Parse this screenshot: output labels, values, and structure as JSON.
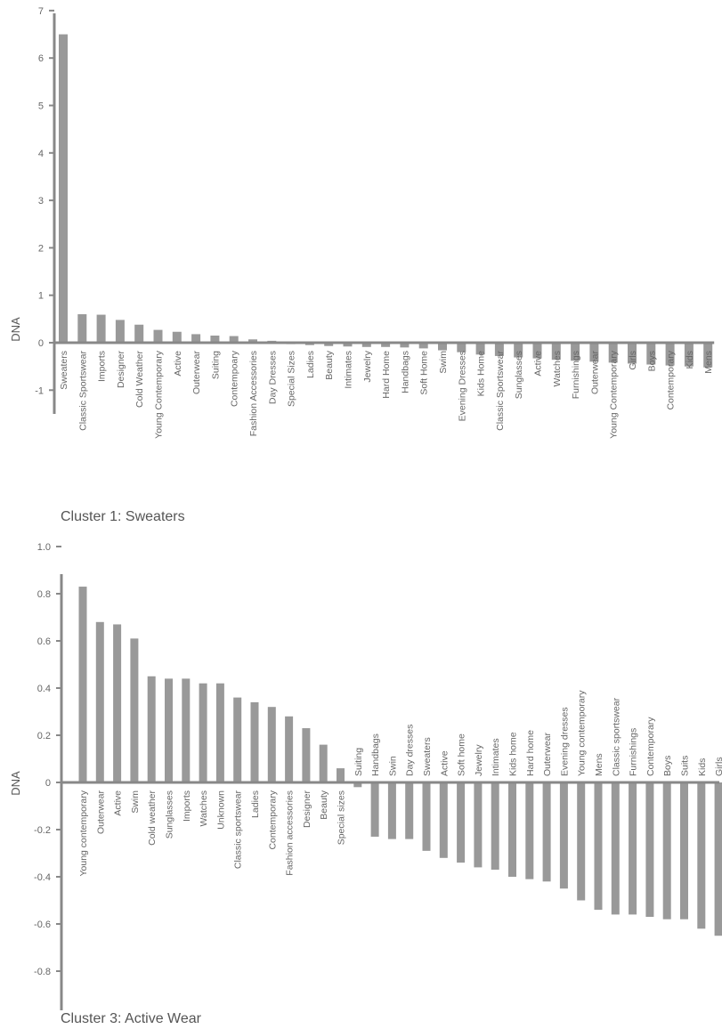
{
  "chart_data": [
    {
      "type": "bar",
      "title": "Cluster 1: Sweaters",
      "ylabel": "DNA",
      "ylim": [
        -1.5,
        7
      ],
      "yticks": [
        7,
        6,
        5,
        4,
        3,
        2,
        1,
        0,
        -1
      ],
      "grid": false,
      "categories": [
        "Sweaters",
        "Classic Sportswear",
        "Imports",
        "Designer",
        "Cold Weather",
        "Young Contemporary",
        "Active",
        "Outerwear",
        "Suiting",
        "Contempoary",
        "Fashion Accessories",
        "Day Dresses",
        "Special Sizes",
        "Ladies",
        "Beauty",
        "Intimates",
        "Jewelry",
        "Hard Home",
        "Handbags",
        "Soft Home",
        "Swim",
        "Evening Dresses",
        "Kids Home",
        "Classic Sportswear",
        "Sunglasses",
        "Active",
        "Watches",
        "Furnishings",
        "Outerwear",
        "Young Contemporary",
        "Girls",
        "Boys",
        "Contemporary",
        "Kids",
        "Mens"
      ],
      "values": [
        6.5,
        0.6,
        0.59,
        0.48,
        0.38,
        0.27,
        0.23,
        0.18,
        0.15,
        0.14,
        0.07,
        0.04,
        -0.03,
        -0.05,
        -0.07,
        -0.08,
        -0.09,
        -0.09,
        -0.1,
        -0.12,
        -0.16,
        -0.2,
        -0.25,
        -0.28,
        -0.31,
        -0.33,
        -0.36,
        -0.38,
        -0.4,
        -0.42,
        -0.44,
        -0.46,
        -0.48,
        -0.5,
        -0.52
      ]
    },
    {
      "type": "bar",
      "title": "Cluster 3: Active Wear",
      "ylabel": "DNA",
      "ylim": [
        -0.8,
        1
      ],
      "yticks": [
        1,
        0.8,
        0.6,
        0.4,
        0.2,
        0,
        -0.2,
        -0.4,
        -0.6,
        -0.8
      ],
      "grid": false,
      "categories": [
        "Young contemporary",
        "Outerwear",
        "Active",
        "Swim",
        "Cold weather",
        "Sunglasses",
        "Imports",
        "Watches",
        "Unknown",
        "Classic sportswear",
        "Ladies",
        "Contemporary",
        "Fashion accessories",
        "Designer",
        "Beauty",
        "Special sizes",
        "Suiting",
        "Handbags",
        "Swin",
        "Day dresses",
        "Sweaters",
        "Active",
        "Soft home",
        "Jewelry",
        "Intimates",
        "Kids home",
        "Hard home",
        "Outerwear",
        "Evening dresses",
        "Young contemporary",
        "Mens",
        "Classic sportswear",
        "Furnishings",
        "Contemporary",
        "Boys",
        "Suits",
        "Kids",
        "Girls"
      ],
      "values": [
        0.83,
        0.68,
        0.67,
        0.61,
        0.45,
        0.44,
        0.44,
        0.42,
        0.42,
        0.36,
        0.34,
        0.32,
        0.28,
        0.23,
        0.16,
        0.06,
        -0.02,
        -0.23,
        -0.24,
        -0.24,
        -0.29,
        -0.32,
        -0.34,
        -0.36,
        -0.37,
        -0.4,
        -0.41,
        -0.42,
        -0.45,
        -0.5,
        -0.54,
        -0.56,
        -0.56,
        -0.57,
        -0.58,
        -0.58,
        -0.62,
        -0.65
      ]
    }
  ]
}
